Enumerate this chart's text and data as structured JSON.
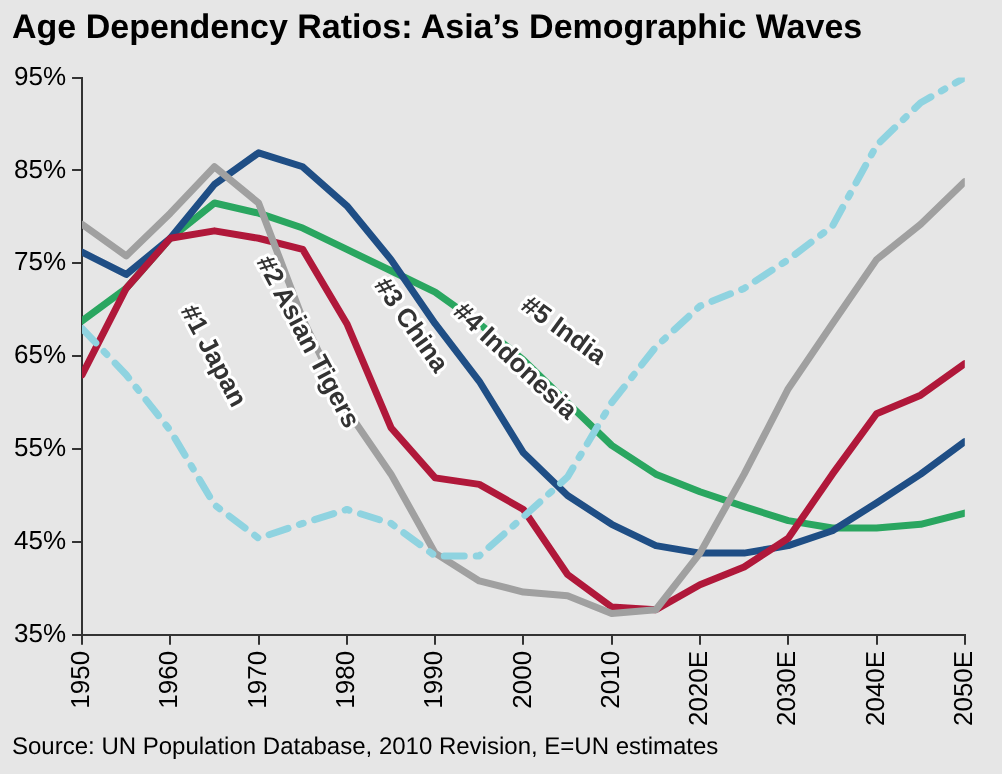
{
  "chart_data": {
    "type": "line",
    "title": "Age Dependency Ratios: Asia’s Demographic Waves",
    "annotations": [
      "Source: UN Population Database, 2010 Revision, E=UN estimates"
    ],
    "x": [
      1950,
      1955,
      1960,
      1965,
      1970,
      1975,
      1980,
      1985,
      1990,
      1995,
      2000,
      2005,
      2010,
      2015,
      2020,
      2025,
      2030,
      2035,
      2040,
      2045,
      2050
    ],
    "series": [
      {
        "name": "#1 Japan",
        "color": "#8fd3e0",
        "line_style": "dashed",
        "values": [
          68,
          63,
          57,
          49,
          45.4,
          47,
          48.5,
          47,
          43.5,
          43.5,
          47.7,
          52,
          60,
          66,
          70.4,
          72.3,
          75.4,
          79,
          87.7,
          92.3,
          95
        ]
      },
      {
        "name": "#2 Asian Tigers",
        "color": "#a0a0a0",
        "values": [
          79.2,
          75.8,
          80.4,
          85.4,
          81.5,
          69,
          59.2,
          52.3,
          43.8,
          40.8,
          39.6,
          39.2,
          37.3,
          37.7,
          43.8,
          52.3,
          61.5,
          68.5,
          75.4,
          79.2,
          83.8
        ]
      },
      {
        "name": "#3 China",
        "color": "#b0183a",
        "values": [
          63,
          72.3,
          77.7,
          78.5,
          77.7,
          76.5,
          68.5,
          57.3,
          51.9,
          51.2,
          48.5,
          41.5,
          38,
          37.7,
          40.4,
          42.3,
          45.4,
          52.3,
          58.8,
          60.8,
          64.2
        ]
      },
      {
        "name": "#4 Indonesia",
        "color": "#1f4e85",
        "values": [
          76.2,
          73.8,
          77.7,
          83.5,
          86.9,
          85.4,
          81.2,
          75.4,
          68.5,
          62.3,
          54.6,
          50,
          46.9,
          44.6,
          43.8,
          43.8,
          44.6,
          46.2,
          49.2,
          52.3,
          55.8
        ]
      },
      {
        "name": "#5 India",
        "color": "#2aa660",
        "values": [
          68.8,
          72.3,
          77.7,
          81.5,
          80.4,
          78.8,
          76.5,
          74.2,
          71.9,
          68.5,
          64.6,
          60,
          55.4,
          52.3,
          50.4,
          48.8,
          47.3,
          46.5,
          46.5,
          46.9,
          48.1
        ]
      }
    ],
    "xlim": [
      1950,
      2050
    ],
    "xticks": [
      1950,
      1960,
      1970,
      1980,
      1990,
      2000,
      2010,
      {
        "value": 2020,
        "label": "2020E"
      },
      {
        "value": 2030,
        "label": "2030E"
      },
      {
        "value": 2040,
        "label": "2040E"
      },
      {
        "value": 2050,
        "label": "2050E"
      }
    ],
    "ylim": [
      35,
      95
    ],
    "yticks": [
      {
        "value": 35,
        "label": "35%"
      },
      {
        "value": 45,
        "label": "45%"
      },
      {
        "value": 55,
        "label": "55%"
      },
      {
        "value": 65,
        "label": "65%"
      },
      {
        "value": 75,
        "label": "75%"
      },
      {
        "value": 85,
        "label": "85%"
      },
      {
        "value": 95,
        "label": "95%"
      }
    ],
    "grid": false,
    "legend": false,
    "marker": "none",
    "line_style": "solid"
  }
}
